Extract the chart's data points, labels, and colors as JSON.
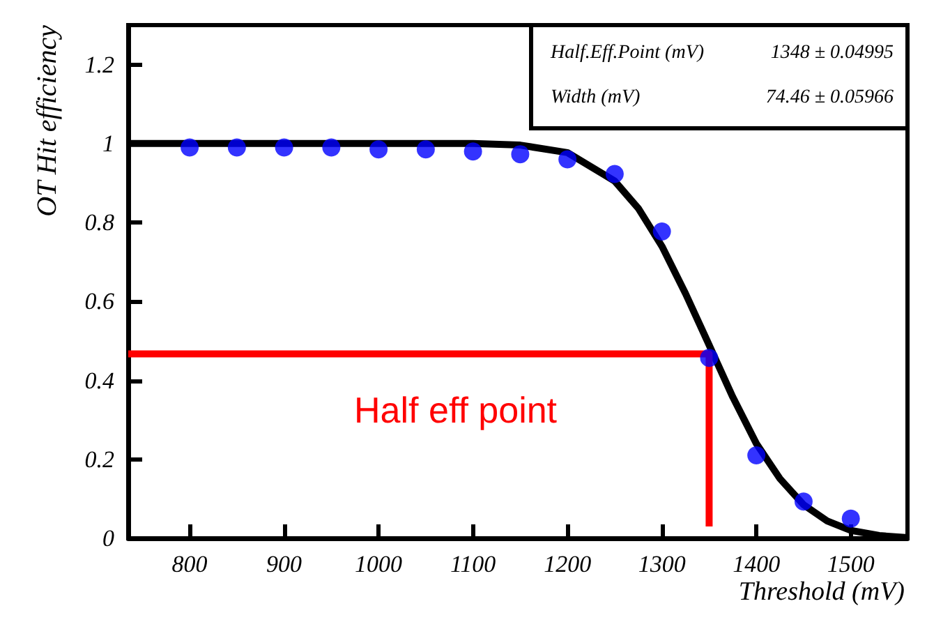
{
  "chart_data": {
    "type": "scatter",
    "xlabel": "Threshold (mV)",
    "ylabel": "OT Hit efficiency",
    "xlim": [
      735,
      1560
    ],
    "ylim": [
      0,
      1.3
    ],
    "xticks": [
      800,
      900,
      1000,
      1100,
      1200,
      1300,
      1400,
      1500
    ],
    "yticks": [
      0,
      0.2,
      0.4,
      0.6,
      0.8,
      1,
      1.2
    ],
    "grid": false,
    "series": [
      {
        "color": "#0000ff",
        "marker": "circle",
        "x": [
          800,
          850,
          900,
          950,
          1000,
          1050,
          1100,
          1150,
          1200,
          1250,
          1300,
          1350,
          1400,
          1450,
          1500
        ],
        "values": [
          0.99,
          0.99,
          0.99,
          0.99,
          0.985,
          0.985,
          0.98,
          0.973,
          0.96,
          0.923,
          0.777,
          0.457,
          0.21,
          0.093,
          0.05
        ]
      },
      {
        "type": "line",
        "color": "#000000",
        "marker": "none",
        "x": [
          735,
          1100,
          1150,
          1200,
          1250,
          1275,
          1300,
          1325,
          1348,
          1375,
          1400,
          1425,
          1450,
          1475,
          1500,
          1530,
          1560
        ],
        "values": [
          1,
          1,
          0.996,
          0.977,
          0.905,
          0.836,
          0.74,
          0.62,
          0.5,
          0.358,
          0.24,
          0.151,
          0.085,
          0.044,
          0.02,
          0.007,
          0.002
        ]
      },
      {
        "type": "line",
        "color": "#ff0000",
        "marker": "none",
        "x": [
          735,
          1350,
          1350
        ],
        "values": [
          0.467,
          0.467,
          0.03
        ]
      }
    ],
    "annotations": [
      "Half.Eff.Point (mV)",
      "1348 ± 0.04995",
      "Width (mV)",
      "74.46 ± 0.05966",
      "Half eff point"
    ]
  }
}
